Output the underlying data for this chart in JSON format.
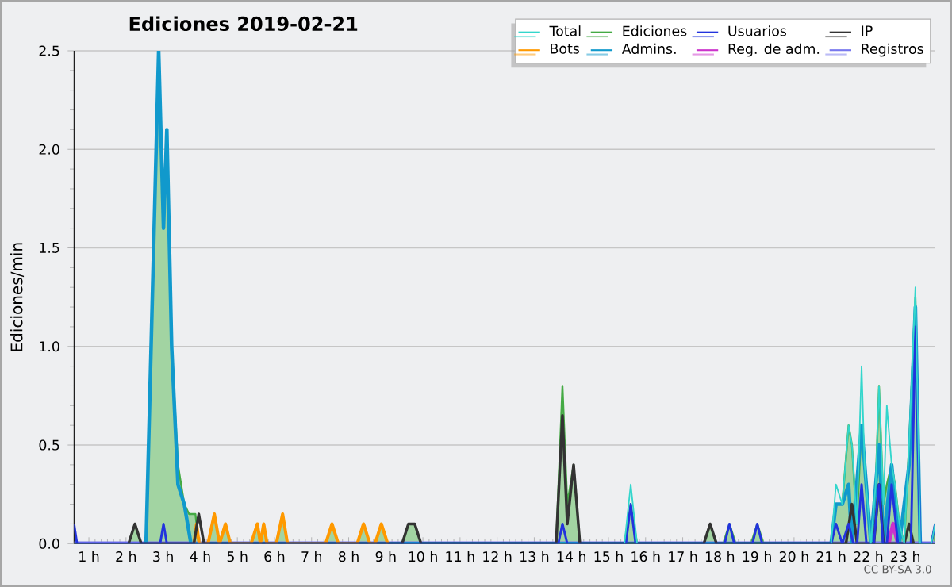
{
  "chart_data": {
    "type": "line",
    "title": "Ediciones  2019-02-21",
    "ylabel": "Ediciones/min",
    "annotations": [
      "CC BY-SA 3.0"
    ],
    "xlim": [
      0.6,
      23.8
    ],
    "ylim": [
      0,
      2.5
    ],
    "xticks": [
      {
        "value": 1,
        "label": "1 h"
      },
      {
        "value": 2,
        "label": "2 h"
      },
      {
        "value": 3,
        "label": "3 h"
      },
      {
        "value": 4,
        "label": "4 h"
      },
      {
        "value": 5,
        "label": "5 h"
      },
      {
        "value": 6,
        "label": "6 h"
      },
      {
        "value": 7,
        "label": "7 h"
      },
      {
        "value": 8,
        "label": "8 h"
      },
      {
        "value": 9,
        "label": "9 h"
      },
      {
        "value": 10,
        "label": "10 h"
      },
      {
        "value": 11,
        "label": "11 h"
      },
      {
        "value": 12,
        "label": "12 h"
      },
      {
        "value": 13,
        "label": "13 h"
      },
      {
        "value": 14,
        "label": "14 h"
      },
      {
        "value": 15,
        "label": "15 h"
      },
      {
        "value": 16,
        "label": "16 h"
      },
      {
        "value": 17,
        "label": "17 h"
      },
      {
        "value": 18,
        "label": "18 h"
      },
      {
        "value": 19,
        "label": "19 h"
      },
      {
        "value": 20,
        "label": "20 h"
      },
      {
        "value": 21,
        "label": "21 h"
      },
      {
        "value": 22,
        "label": "22 h"
      },
      {
        "value": 23,
        "label": "23 h"
      }
    ],
    "yticks": [
      {
        "value": 0,
        "label": "0.0"
      },
      {
        "value": 0.5,
        "label": "0.5"
      },
      {
        "value": 1,
        "label": "1.0"
      },
      {
        "value": 1.5,
        "label": "1.5"
      },
      {
        "value": 2,
        "label": "2.0"
      },
      {
        "value": 2.5,
        "label": "2.5"
      }
    ],
    "grid": "y",
    "legend": "top right",
    "marker": "none",
    "line_style": "solid",
    "series": [
      {
        "name": "Total",
        "color": "#33d6cc",
        "x": [
          15.43,
          15.6,
          15.77,
          18.5,
          21.0,
          21.13,
          21.3,
          21.47,
          21.56,
          21.69,
          21.82,
          21.9,
          22.07,
          22.2,
          22.29,
          22.41,
          22.5,
          22.63,
          22.72,
          22.84,
          22.97,
          23.1,
          23.27,
          23.4,
          23.7,
          23.8
        ],
        "values": [
          0,
          0.3,
          0,
          null,
          0,
          0.3,
          0.2,
          0.6,
          0.5,
          0.1,
          0.9,
          0.4,
          0,
          0.3,
          0.8,
          0.2,
          0.7,
          0.4,
          0.3,
          0.1,
          0,
          0.5,
          1.3,
          0,
          0,
          0.1
        ]
      },
      {
        "name": "Ediciones",
        "color": "#44aa44",
        "type": "area",
        "x": [
          0.6,
          2.07,
          2.24,
          2.41,
          2.54,
          2.88,
          3.01,
          3.1,
          3.23,
          3.4,
          3.57,
          3.7,
          3.87,
          3.96,
          4.21,
          4.38,
          4.52,
          4.68,
          4.81,
          5.37,
          5.54,
          5.62,
          5.71,
          5.8,
          6.05,
          6.22,
          6.35,
          7.38,
          7.55,
          7.72,
          8.23,
          8.4,
          8.57,
          8.71,
          8.88,
          9.05,
          9.44,
          9.61,
          9.78,
          9.95,
          13.59,
          13.76,
          13.89,
          14.06,
          14.23,
          15.43,
          15.6,
          15.77,
          17.57,
          17.74,
          17.91,
          18.09,
          18.26,
          18.43,
          18.84,
          19.01,
          19.18,
          21.0,
          21.13,
          21.3,
          21.47,
          21.56,
          21.69,
          21.82,
          21.9,
          22.07,
          22.2,
          22.29,
          22.41,
          22.5,
          22.63,
          22.72,
          22.84,
          22.97,
          23.1,
          23.27,
          23.4,
          23.7,
          23.8
        ],
        "values": [
          0,
          0,
          0.1,
          0,
          0,
          2.5,
          1.6,
          2.1,
          1.0,
          0.4,
          0.2,
          0.15,
          0.15,
          0,
          0,
          0.15,
          0,
          0.1,
          0,
          0,
          0.1,
          0,
          0.1,
          0,
          0,
          0.15,
          0,
          0,
          0.1,
          0,
          0,
          0.1,
          0,
          0,
          0.1,
          0,
          0,
          0.1,
          0.1,
          0,
          0,
          0.8,
          0.2,
          0.4,
          0,
          0,
          0.2,
          0,
          0,
          0.1,
          0,
          0,
          0.1,
          0,
          0,
          0.1,
          0,
          0,
          0.2,
          0.2,
          0.6,
          0.5,
          0.1,
          0.6,
          0.4,
          0,
          0.3,
          0.8,
          0.2,
          0.3,
          0.4,
          0.3,
          0.1,
          0,
          0.5,
          1.25,
          0,
          0,
          0.1
        ]
      },
      {
        "name": "Usuarios",
        "color": "#2233dd",
        "x": [
          0.6,
          0.68,
          2.92,
          3.01,
          3.1,
          13.65,
          13.76,
          13.89,
          15.47,
          15.6,
          15.73,
          18.13,
          18.26,
          18.39,
          18.88,
          19.01,
          19.14,
          21.0,
          21.13,
          21.3,
          21.47,
          21.6,
          21.7,
          21.82,
          21.95,
          22.15,
          22.29,
          22.4,
          22.5,
          22.63,
          22.8,
          23.15,
          23.27,
          23.4,
          23.7,
          23.8
        ],
        "values": [
          0.1,
          0,
          0,
          0.1,
          0,
          0,
          0.1,
          0,
          0,
          0.2,
          0,
          0,
          0.1,
          0,
          0,
          0.1,
          0,
          0,
          0.1,
          0,
          0.1,
          0,
          0,
          0.3,
          0,
          0,
          0.3,
          0,
          0,
          0.3,
          0,
          0,
          1.1,
          0,
          0,
          0.1
        ]
      },
      {
        "name": "IP",
        "color": "#333333",
        "x": [
          2.07,
          2.24,
          2.41,
          3.83,
          3.96,
          4.1,
          9.44,
          9.61,
          9.78,
          9.95,
          13.59,
          13.76,
          13.89,
          14.06,
          14.23,
          17.57,
          17.74,
          17.91,
          21.4,
          21.56,
          21.7,
          22.15,
          22.29,
          22.41,
          22.97,
          23.1,
          23.22
        ],
        "values": [
          0,
          0.1,
          0,
          0,
          0.15,
          0,
          0,
          0.1,
          0.1,
          0,
          0,
          0.65,
          0.1,
          0.4,
          0,
          0,
          0.1,
          0,
          0,
          0.2,
          0,
          0,
          0.3,
          0,
          0,
          0.1,
          0
        ]
      },
      {
        "name": "Bots",
        "color": "#ff9900",
        "x": [
          3.83,
          3.9,
          3.97,
          4.21,
          4.38,
          4.52,
          4.68,
          4.81,
          5.37,
          5.54,
          5.62,
          5.71,
          5.8,
          6.05,
          6.22,
          6.35,
          7.38,
          7.55,
          7.72,
          8.23,
          8.4,
          8.57,
          8.71,
          8.88,
          9.05
        ],
        "values": [
          0,
          0.1,
          0,
          0,
          0.15,
          0,
          0.1,
          0,
          0,
          0.1,
          0,
          0.1,
          0,
          0,
          0.15,
          0,
          0,
          0.1,
          0,
          0,
          0.1,
          0,
          0,
          0.1,
          0
        ]
      },
      {
        "name": "Admins.",
        "color": "#1199cc",
        "x": [
          2.54,
          2.88,
          3.01,
          3.1,
          3.23,
          3.4,
          3.57,
          3.75,
          21.0,
          21.13,
          21.3,
          21.47,
          21.56,
          21.82,
          22.07,
          22.29,
          22.41,
          22.63,
          22.84,
          23.1,
          23.27,
          23.4
        ],
        "values": [
          0,
          2.5,
          1.6,
          2.1,
          1.0,
          0.3,
          0.2,
          0,
          0,
          0.2,
          0.2,
          0.3,
          0,
          0.6,
          0,
          0.5,
          0,
          0.4,
          0,
          0.4,
          1.2,
          0
        ]
      },
      {
        "name": "Reg. de adm.",
        "color": "#cc33cc",
        "x": [
          22.55,
          22.67,
          22.8
        ],
        "values": [
          0,
          0.1,
          0
        ]
      },
      {
        "name": "Registros",
        "color": "#7777ee",
        "x": [
          0.6,
          23.8
        ],
        "values": [
          0,
          0
        ]
      }
    ]
  }
}
